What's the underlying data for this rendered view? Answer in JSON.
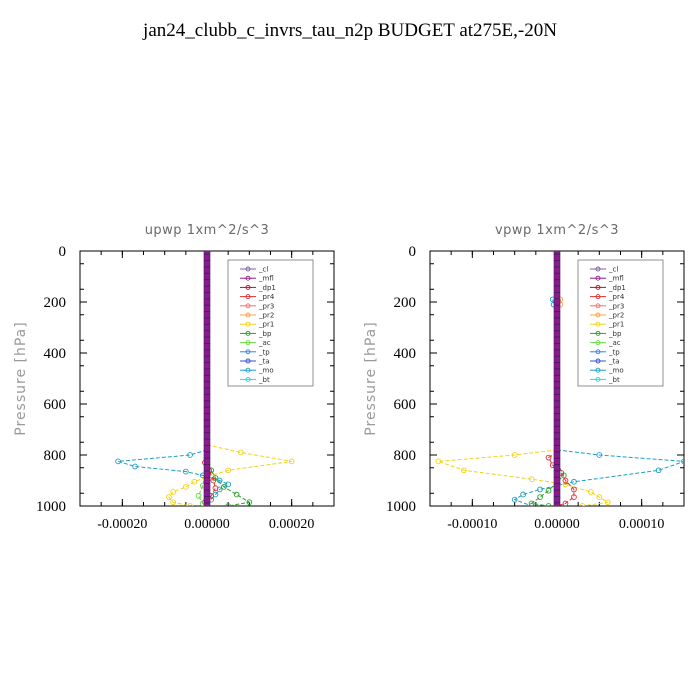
{
  "title": "jan24_clubb_c_invrs_tau_n2p  BUDGET at275E,-20N",
  "legend": [
    {
      "name": "_cl",
      "color": "#7b5ea7"
    },
    {
      "name": "_mfl",
      "color": "#8b1a8b"
    },
    {
      "name": "_dp1",
      "color": "#b0103a"
    },
    {
      "name": "_pr4",
      "color": "#e03030"
    },
    {
      "name": "_pr3",
      "color": "#ff6a6a"
    },
    {
      "name": "_pr2",
      "color": "#ffa040"
    },
    {
      "name": "_pr1",
      "color": "#f2d21a"
    },
    {
      "name": "_bp",
      "color": "#2ca02c"
    },
    {
      "name": "_ac",
      "color": "#66dd44"
    },
    {
      "name": "_tp",
      "color": "#2e86de"
    },
    {
      "name": "_ta",
      "color": "#3050d0"
    },
    {
      "name": "_mo",
      "color": "#1aa0c8"
    },
    {
      "name": "_bt",
      "color": "#18e0e0"
    }
  ],
  "chart_data": [
    {
      "type": "line",
      "title": "upwp   1xm^2/s^3",
      "xlabel": "",
      "ylabel": "Pressure [hPa]",
      "xlim": [
        -0.0003,
        0.0003
      ],
      "ylim": [
        1000,
        0
      ],
      "xticks": [
        -0.0002,
        0.0,
        0.0002
      ],
      "xtick_labels": [
        "-0.00020",
        "0.00000",
        "0.00020"
      ],
      "yticks": [
        0,
        200,
        400,
        600,
        800,
        1000
      ],
      "ytick_labels": [
        "0",
        "200",
        "400",
        "600",
        "800",
        "1000"
      ],
      "legend_position": "top-right",
      "series": [
        {
          "name": "_mo",
          "points": [
            [
              0,
              780
            ],
            [
              -4e-05,
              800
            ],
            [
              -0.00021,
              825
            ],
            [
              -0.00017,
              845
            ],
            [
              -5e-05,
              865
            ],
            [
              -1e-05,
              880
            ],
            [
              3e-05,
              900
            ],
            [
              5e-05,
              915
            ],
            [
              3e-05,
              935
            ],
            [
              2e-05,
              955
            ],
            [
              1e-05,
              975
            ],
            [
              0,
              995
            ]
          ]
        },
        {
          "name": "_pr1",
          "points": [
            [
              0,
              760
            ],
            [
              8e-05,
              790
            ],
            [
              0.0002,
              825
            ],
            [
              5e-05,
              860
            ],
            [
              1e-05,
              880
            ],
            [
              -3e-05,
              905
            ],
            [
              -5e-05,
              925
            ],
            [
              -8e-05,
              945
            ],
            [
              -9e-05,
              965
            ],
            [
              -8e-05,
              985
            ],
            [
              -4e-05,
              1000
            ]
          ]
        },
        {
          "name": "_bp",
          "points": [
            [
              0,
              820
            ],
            [
              1e-05,
              860
            ],
            [
              2e-05,
              890
            ],
            [
              4e-05,
              925
            ],
            [
              7e-05,
              955
            ],
            [
              0.0001,
              985
            ],
            [
              5e-05,
              1000
            ]
          ]
        },
        {
          "name": "_pr4",
          "points": [
            [
              0,
              800
            ],
            [
              -5e-06,
              830
            ],
            [
              5e-06,
              860
            ],
            [
              1.5e-05,
              900
            ],
            [
              2e-05,
              930
            ],
            [
              1e-05,
              960
            ],
            [
              -5e-06,
              985
            ],
            [
              0,
              1000
            ]
          ]
        },
        {
          "name": "_ac",
          "points": [
            [
              0,
              850
            ],
            [
              -1e-05,
              920
            ],
            [
              -2e-05,
              960
            ],
            [
              -1e-05,
              990
            ],
            [
              0,
              1000
            ]
          ]
        },
        {
          "name": "_mfl",
          "points": [
            [
              0,
              0
            ],
            [
              0,
              1000
            ]
          ]
        }
      ]
    },
    {
      "type": "line",
      "title": "vpwp   1xm^2/s^3",
      "xlabel": "",
      "ylabel": "Pressure [hPa]",
      "xlim": [
        -0.00015,
        0.00015
      ],
      "ylim": [
        1000,
        0
      ],
      "xticks": [
        -0.0001,
        0.0,
        0.0001
      ],
      "xtick_labels": [
        "-0.00010",
        "0.00000",
        "0.00010"
      ],
      "yticks": [
        0,
        200,
        400,
        600,
        800,
        1000
      ],
      "ytick_labels": [
        "0",
        "200",
        "400",
        "600",
        "800",
        "1000"
      ],
      "legend_position": "top-right",
      "series": [
        {
          "name": "_pr2",
          "points": [
            [
              0,
              170
            ],
            [
              4e-06,
              190
            ],
            [
              4e-06,
              210
            ],
            [
              0,
              230
            ]
          ]
        },
        {
          "name": "_mo",
          "points": [
            [
              -5e-06,
              190
            ],
            [
              -4e-06,
              210
            ],
            [
              0,
              230
            ]
          ]
        },
        {
          "name": "_pr1",
          "points": [
            [
              0,
              780
            ],
            [
              -5e-05,
              800
            ],
            [
              -0.00014,
              825
            ],
            [
              -0.00011,
              860
            ],
            [
              -3e-05,
              895
            ],
            [
              1e-05,
              915
            ],
            [
              4e-05,
              945
            ],
            [
              5e-05,
              965
            ],
            [
              6e-05,
              985
            ],
            [
              3e-05,
              1000
            ]
          ]
        },
        {
          "name": "_mo",
          "points": [
            [
              0,
              780
            ],
            [
              5e-05,
              800
            ],
            [
              0.00015,
              825
            ],
            [
              0.00012,
              860
            ],
            [
              2e-05,
              905
            ],
            [
              -2e-05,
              935
            ],
            [
              -4e-05,
              955
            ],
            [
              -5e-05,
              975
            ],
            [
              -3e-05,
              1000
            ]
          ]
        },
        {
          "name": "_pr4",
          "points": [
            [
              0,
              790
            ],
            [
              -1e-05,
              810
            ],
            [
              -5e-06,
              840
            ],
            [
              5e-06,
              870
            ],
            [
              1e-05,
              900
            ],
            [
              2e-05,
              935
            ],
            [
              2e-05,
              965
            ],
            [
              1e-05,
              990
            ],
            [
              0,
              1000
            ]
          ]
        },
        {
          "name": "_bp",
          "points": [
            [
              0,
              830
            ],
            [
              8e-06,
              880
            ],
            [
              -1e-05,
              940
            ],
            [
              -2e-05,
              965
            ],
            [
              -3e-05,
              990
            ],
            [
              -1e-05,
              1000
            ]
          ]
        },
        {
          "name": "_mfl",
          "points": [
            [
              0,
              0
            ],
            [
              0,
              1000
            ]
          ]
        }
      ]
    }
  ]
}
